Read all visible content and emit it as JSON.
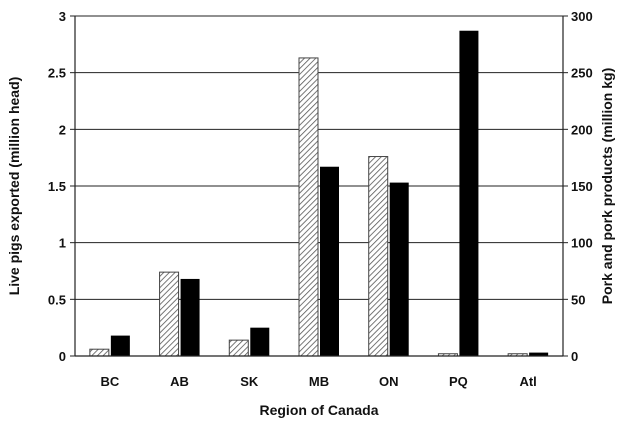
{
  "chart_data": {
    "type": "bar",
    "title": "",
    "xlabel": "Region of Canada",
    "ylabel_left": "Live pigs exported (million head)",
    "ylabel_right": "Pork and pork products (million kg)",
    "categories": [
      "BC",
      "AB",
      "SK",
      "MB",
      "ON",
      "PQ",
      "Atl"
    ],
    "ylim_left": [
      0,
      3
    ],
    "yticks_left": [
      "0",
      "0.5",
      "1",
      "1.5",
      "2",
      "2.5",
      "3"
    ],
    "ylim_right": [
      0,
      300
    ],
    "yticks_right": [
      "0",
      "50",
      "100",
      "150",
      "200",
      "250",
      "300"
    ],
    "grid": true,
    "legend": "none",
    "series": [
      {
        "axis": "left",
        "pattern": "hatched",
        "values": [
          0.06,
          0.74,
          0.14,
          2.63,
          1.76,
          0.02,
          0.02
        ]
      },
      {
        "axis": "right",
        "pattern": "solid-black",
        "values": [
          18,
          68,
          25,
          167,
          153,
          287,
          3
        ]
      }
    ]
  }
}
